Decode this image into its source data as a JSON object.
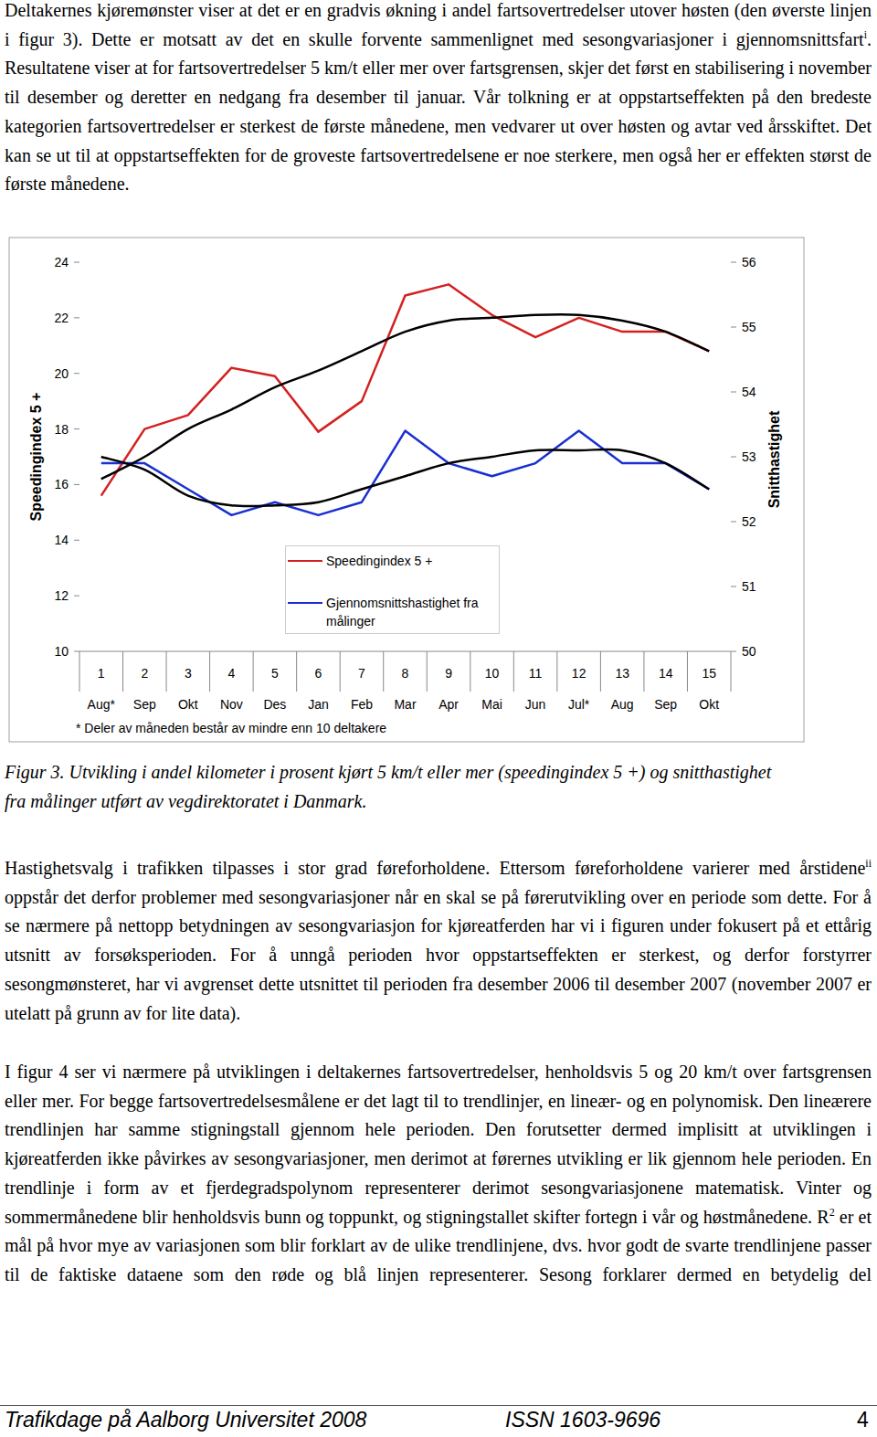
{
  "paragraph_1": [
    {
      "text": "Deltakernes kjøremønster viser at det er en gradvis økning i andel fartsovertredelser utover høsten (den øverste linjen i figur 3). Dette er motsatt av det en skulle forvente sammenlignet med sesongvariasjoner i gjennomsnittsfart"
    },
    {
      "sup": "i"
    },
    {
      "text": ". Resultatene viser at for fartsovertredelser 5 km/t eller mer over fartsgrensen, skjer det først en stabilisering i november til desember og deretter en nedgang fra desember til januar. Vår tolkning er at oppstartseffekten på den bredeste kategorien fartsovertredelser er sterkest de første månedene, men vedvarer ut over høsten og avtar ved årsskiftet. Det kan se ut til at oppstartseffekten for de groveste fartsovertredelsene er noe sterkere, men også her er effekten størst de første månedene."
    }
  ],
  "chart_data": {
    "type": "line",
    "x": [
      1,
      2,
      3,
      4,
      5,
      6,
      7,
      8,
      9,
      10,
      11,
      12,
      13,
      14,
      15
    ],
    "xlim": [
      0.5,
      15.5
    ],
    "xticks": [
      1,
      2,
      3,
      4,
      5,
      6,
      7,
      8,
      9,
      10,
      11,
      12,
      13,
      14,
      15
    ],
    "x_sublabels": [
      "Aug*",
      "Sep",
      "Okt",
      "Nov",
      "Des",
      "Jan",
      "Feb",
      "Mar",
      "Apr",
      "Mai",
      "Jun",
      "Jul*",
      "Aug",
      "Sep",
      "Okt"
    ],
    "note": "* Deler av måneden består av mindre enn 10 deltakere",
    "y_label": "Speedingindex 5 +",
    "y2_label": "Snitthastighet",
    "ylim": [
      10,
      24
    ],
    "yticks": [
      10,
      12,
      14,
      16,
      18,
      20,
      22,
      24
    ],
    "y2lim": [
      50,
      56
    ],
    "y2ticks": [
      50,
      51,
      52,
      53,
      54,
      55,
      56
    ],
    "legend": "center",
    "series": [
      {
        "name": "Speedingindex 5 +",
        "color": "#d42020",
        "line_style": "solid",
        "values": [
          15.6,
          18.0,
          18.5,
          20.2,
          19.9,
          17.9,
          19.0,
          22.8,
          23.2,
          22.1,
          21.3,
          22.0,
          21.5,
          21.5,
          20.8
        ]
      },
      {
        "name": "Gjennomsnittshastighet fra målinger",
        "color": "#1a2fd0",
        "axis": "y2",
        "line_style": "solid",
        "values": [
          52.9,
          52.9,
          52.5,
          52.1,
          52.3,
          52.1,
          52.3,
          53.4,
          52.9,
          52.7,
          52.9,
          53.4,
          52.9,
          52.9,
          52.5
        ]
      },
      {
        "color": "#000000",
        "line_style": "smooth",
        "values": [
          16.2,
          17.0,
          18.0,
          18.7,
          19.5,
          20.1,
          20.8,
          21.5,
          21.9,
          22.0,
          22.1,
          22.1,
          21.9,
          21.5,
          20.8
        ]
      },
      {
        "color": "#000000",
        "axis": "y2",
        "line_style": "smooth",
        "values": [
          53.0,
          52.8,
          52.4,
          52.25,
          52.25,
          52.3,
          52.5,
          52.7,
          52.9,
          53.0,
          53.1,
          53.1,
          53.1,
          52.9,
          52.5
        ]
      }
    ]
  },
  "caption": "Figur 3. Utvikling i andel kilometer i prosent kjørt 5 km/t eller mer (speedingindex 5 +) og snitthastighet fra målinger utført av vegdirektoratet i Danmark.",
  "paragraph_2": [
    {
      "text": "Hastighetsvalg i trafikken tilpasses i stor grad føreforholdene. Ettersom føreforholdene varierer med årstidene"
    },
    {
      "sup": "ii"
    },
    {
      "text": " oppstår det derfor problemer med sesongvariasjoner når en skal se på førerutvikling over en periode som dette. For å se nærmere på nettopp betydningen av sesongvariasjon for kjøreatferden har vi i figuren under fokusert på et ettårig utsnitt av forsøksperioden. For å unngå perioden hvor oppstartseffekten er sterkest, og derfor forstyrrer sesongmønsteret, har vi avgrenset dette utsnittet til perioden fra desember 2006 til desember 2007 (november 2007 er utelatt på grunn av for lite data)."
    }
  ],
  "paragraph_3": [
    {
      "text": "I figur 4 ser vi nærmere på utviklingen i deltakernes fartsovertredelser, henholdsvis 5 og 20 km/t over fartsgrensen eller mer. For begge fartsovertredelsesmålene er det lagt til to trendlinjer, en lineær- og en polynomisk. Den lineærere trendlinjen har samme stigningstall gjennom hele perioden. Den forutsetter dermed implisitt at utviklingen i kjøreatferden ikke påvirkes av sesongvariasjoner, men derimot at førernes utvikling er lik gjennom hele perioden. En trendlinje i form av et fjerdegradspolynom representerer derimot sesongvariasjonene matematisk. Vinter og sommermånedene blir henholdsvis bunn og toppunkt, og stigningstallet skifter fortegn i vår og høstmånedene. R"
    },
    {
      "sup": "2"
    },
    {
      "text": " er et mål på hvor mye av variasjonen som blir forklart av de ulike trendlinjene, dvs. hvor godt de svarte trendlinjene passer til de faktiske dataene som den røde og blå linjen representerer. Sesong forklarer dermed en betydelig del"
    }
  ],
  "footer": {
    "left": "Trafikdage på Aalborg Universitet 2008",
    "center": "ISSN 1603-9696",
    "page": "4"
  }
}
